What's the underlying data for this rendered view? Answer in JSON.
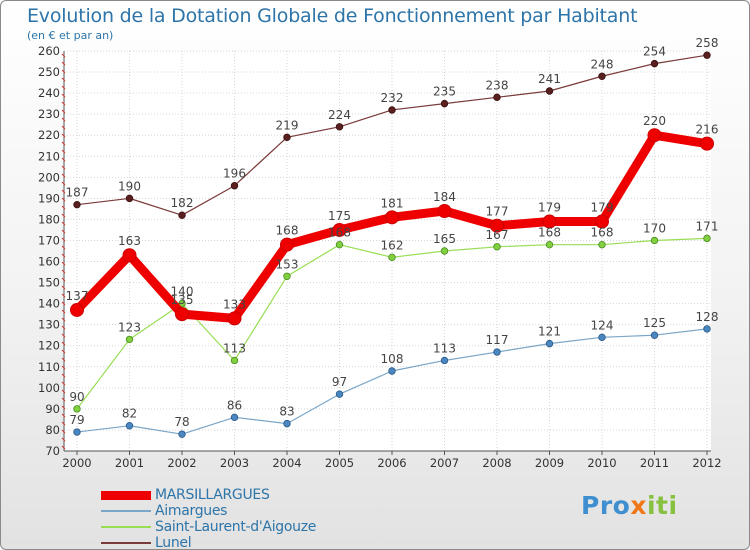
{
  "chart_data": {
    "type": "line",
    "title": "Evolution de la Dotation Globale de Fonctionnement par Habitant",
    "subtitle": "(en € et par an)",
    "xlabel": "",
    "ylabel": "",
    "categories": [
      "2000",
      "2001",
      "2002",
      "2003",
      "2004",
      "2005",
      "2006",
      "2007",
      "2008",
      "2009",
      "2010",
      "2011",
      "2012"
    ],
    "ylim": [
      70,
      260
    ],
    "yticks": [
      70,
      80,
      90,
      100,
      110,
      120,
      130,
      140,
      150,
      160,
      170,
      180,
      190,
      200,
      210,
      220,
      230,
      240,
      250,
      260
    ],
    "grid": true,
    "legend_position": "bottom-left",
    "series": [
      {
        "name": "MARSILLARGUES",
        "color": "#ee0000",
        "values": [
          137,
          163,
          135,
          133,
          168,
          175,
          181,
          184,
          177,
          179,
          179,
          220,
          216
        ],
        "labels": [
          "137",
          "163",
          "135",
          "133",
          "168",
          "175",
          "181",
          "184",
          "177",
          "179",
          "179",
          "220",
          "216"
        ]
      },
      {
        "name": "Aimargues",
        "color": "#7aa6c8",
        "values": [
          79,
          82,
          78,
          86,
          83,
          97,
          108,
          113,
          117,
          121,
          124,
          125,
          128
        ],
        "labels": [
          "79",
          "82",
          "78",
          "86",
          "83",
          "97",
          "108",
          "113",
          "117",
          "121",
          "124",
          "125",
          "128"
        ]
      },
      {
        "name": "Saint-Laurent-d'Aigouze",
        "color": "#99dd55",
        "values": [
          90,
          123,
          140,
          113,
          153,
          168,
          162,
          165,
          167,
          168,
          168,
          170,
          171
        ],
        "labels": [
          "90",
          "123",
          "140",
          "113",
          "153",
          "168",
          "162",
          "165",
          "167",
          "168",
          "168",
          "170",
          "171"
        ]
      },
      {
        "name": "Lunel",
        "color": "#7a3a3a",
        "values": [
          187,
          190,
          182,
          196,
          219,
          224,
          232,
          235,
          238,
          241,
          248,
          254,
          258
        ],
        "labels": [
          "187",
          "190",
          "182",
          "196",
          "219",
          "224",
          "232",
          "235",
          "238",
          "241",
          "248",
          "254",
          "258"
        ]
      }
    ]
  },
  "logo": {
    "parts": [
      "Pro",
      "x",
      "iti"
    ],
    "colors": [
      "#3f8fd0",
      "#f07818",
      "#88c040"
    ]
  }
}
